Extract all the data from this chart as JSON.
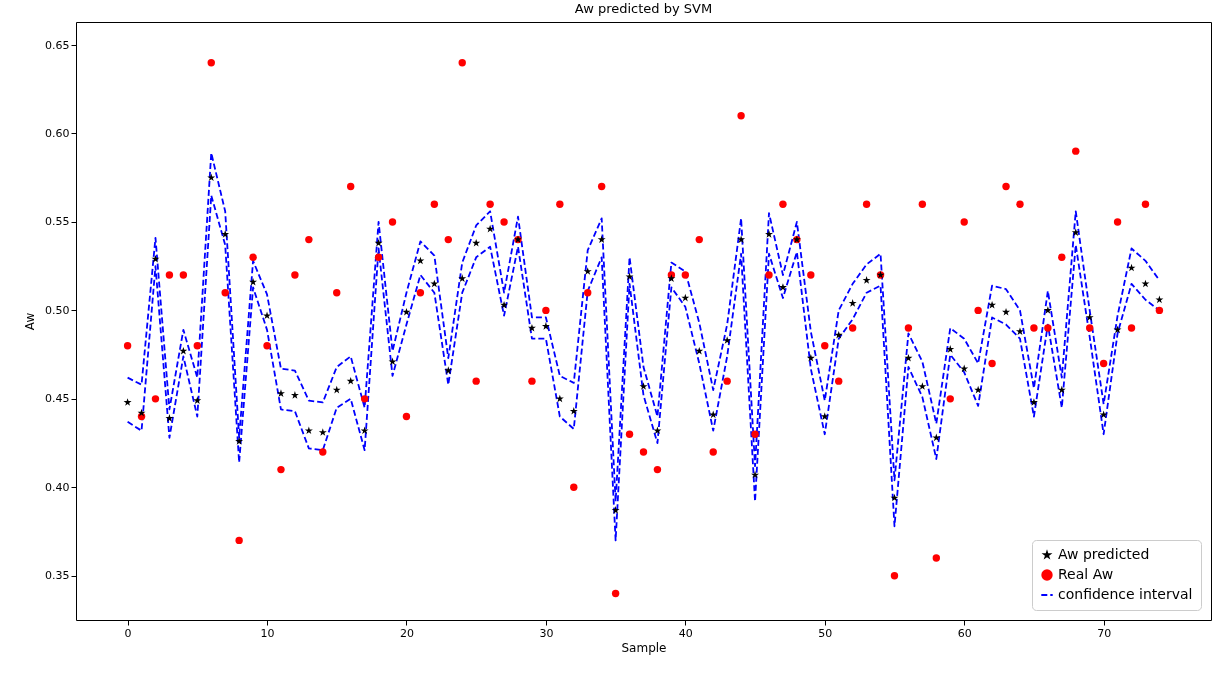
{
  "chart_data": {
    "type": "scatter",
    "title": "Aw predicted by SVM",
    "xlabel": "Sample",
    "ylabel": "Aw",
    "x": [
      0,
      1,
      2,
      3,
      4,
      5,
      6,
      7,
      8,
      9,
      10,
      11,
      12,
      13,
      14,
      15,
      16,
      17,
      18,
      19,
      20,
      21,
      22,
      23,
      24,
      25,
      26,
      27,
      28,
      29,
      30,
      31,
      32,
      33,
      34,
      35,
      36,
      37,
      38,
      39,
      40,
      41,
      42,
      43,
      44,
      45,
      46,
      47,
      48,
      49,
      50,
      51,
      52,
      53,
      54,
      55,
      56,
      57,
      58,
      59,
      60,
      61,
      62,
      63,
      64,
      65,
      66,
      67,
      68,
      69,
      70,
      71,
      72,
      73,
      74
    ],
    "xlim": [
      -3.7,
      77.7
    ],
    "xticks": [
      0,
      10,
      20,
      30,
      40,
      50,
      60,
      70
    ],
    "ylim": [
      0.325,
      0.663
    ],
    "yticks": [
      {
        "value": 0.35,
        "label": "0.35"
      },
      {
        "value": 0.4,
        "label": "0.40"
      },
      {
        "value": 0.45,
        "label": "0.45"
      },
      {
        "value": 0.5,
        "label": "0.50"
      },
      {
        "value": 0.55,
        "label": "0.55"
      },
      {
        "value": 0.6,
        "label": "0.60"
      },
      {
        "value": 0.65,
        "label": "0.65"
      }
    ],
    "grid": false,
    "legend": "bottom right",
    "series": [
      {
        "name": "Aw predicted",
        "marker": "star",
        "color": "#000000",
        "values": [
          0.448,
          0.442,
          0.529,
          0.439,
          0.477,
          0.449,
          0.575,
          0.543,
          0.426,
          0.516,
          0.497,
          0.453,
          0.452,
          0.432,
          0.431,
          0.455,
          0.46,
          0.432,
          0.538,
          0.471,
          0.499,
          0.528,
          0.515,
          0.466,
          0.518,
          0.538,
          0.546,
          0.503,
          0.54,
          0.49,
          0.491,
          0.45,
          0.443,
          0.522,
          0.54,
          0.387,
          0.519,
          0.457,
          0.432,
          0.518,
          0.507,
          0.477,
          0.441,
          0.483,
          0.54,
          0.407,
          0.543,
          0.513,
          0.54,
          0.473,
          0.44,
          0.486,
          0.504,
          0.517,
          0.52,
          0.394,
          0.473,
          0.457,
          0.428,
          0.478,
          0.467,
          0.455,
          0.503,
          0.499,
          0.488,
          0.448,
          0.5,
          0.455,
          0.544,
          0.496,
          0.441,
          0.489,
          0.524,
          0.515,
          0.506
        ]
      },
      {
        "name": "Real Aw",
        "marker": "circle",
        "color": "#ff0000",
        "values": [
          0.48,
          0.44,
          0.45,
          0.52,
          0.52,
          0.48,
          0.64,
          0.51,
          0.37,
          0.53,
          0.48,
          0.41,
          0.52,
          0.54,
          0.42,
          0.51,
          0.57,
          0.45,
          0.53,
          0.55,
          0.44,
          0.51,
          0.56,
          0.54,
          0.64,
          0.46,
          0.56,
          0.55,
          0.54,
          0.46,
          0.5,
          0.56,
          0.4,
          0.51,
          0.57,
          0.34,
          0.43,
          0.42,
          0.41,
          0.52,
          0.52,
          0.54,
          0.42,
          0.46,
          0.61,
          0.43,
          0.52,
          0.56,
          0.54,
          0.52,
          0.48,
          0.46,
          0.49,
          0.56,
          0.52,
          0.35,
          0.49,
          0.56,
          0.36,
          0.45,
          0.55,
          0.5,
          0.47,
          0.57,
          0.56,
          0.49,
          0.49,
          0.53,
          0.59,
          0.49,
          0.47,
          0.55,
          0.49,
          0.56,
          0.5
        ]
      },
      {
        "name": "confidence interval",
        "type": "line",
        "line_style": "dashed",
        "color": "#0000ff",
        "values": [
          0.462,
          0.458,
          0.541,
          0.444,
          0.489,
          0.462,
          0.589,
          0.556,
          0.428,
          0.528,
          0.509,
          0.467,
          0.466,
          0.449,
          0.448,
          0.468,
          0.474,
          0.445,
          0.55,
          0.477,
          0.51,
          0.539,
          0.531,
          0.473,
          0.527,
          0.548,
          0.556,
          0.51,
          0.553,
          0.496,
          0.496,
          0.463,
          0.459,
          0.534,
          0.552,
          0.392,
          0.53,
          0.468,
          0.44,
          0.527,
          0.522,
          0.493,
          0.455,
          0.492,
          0.552,
          0.412,
          0.555,
          0.52,
          0.55,
          0.488,
          0.449,
          0.5,
          0.515,
          0.526,
          0.532,
          0.404,
          0.487,
          0.471,
          0.436,
          0.49,
          0.484,
          0.47,
          0.514,
          0.512,
          0.5,
          0.456,
          0.511,
          0.462,
          0.556,
          0.5,
          0.447,
          0.497,
          0.535,
          0.528,
          0.517
        ]
      },
      {
        "type": "line",
        "line_style": "dashed",
        "color": "#0000ff",
        "values": [
          0.437,
          0.432,
          0.525,
          0.428,
          0.474,
          0.44,
          0.565,
          0.537,
          0.414,
          0.513,
          0.489,
          0.444,
          0.443,
          0.422,
          0.421,
          0.445,
          0.45,
          0.421,
          0.535,
          0.463,
          0.492,
          0.52,
          0.51,
          0.458,
          0.51,
          0.53,
          0.536,
          0.497,
          0.536,
          0.484,
          0.484,
          0.44,
          0.433,
          0.511,
          0.53,
          0.37,
          0.515,
          0.452,
          0.425,
          0.513,
          0.502,
          0.47,
          0.432,
          0.474,
          0.532,
          0.392,
          0.532,
          0.507,
          0.533,
          0.467,
          0.43,
          0.484,
          0.495,
          0.51,
          0.514,
          0.378,
          0.468,
          0.451,
          0.416,
          0.475,
          0.465,
          0.446,
          0.496,
          0.492,
          0.484,
          0.44,
          0.492,
          0.445,
          0.537,
          0.485,
          0.43,
          0.487,
          0.515,
          0.506,
          0.5
        ]
      }
    ]
  }
}
